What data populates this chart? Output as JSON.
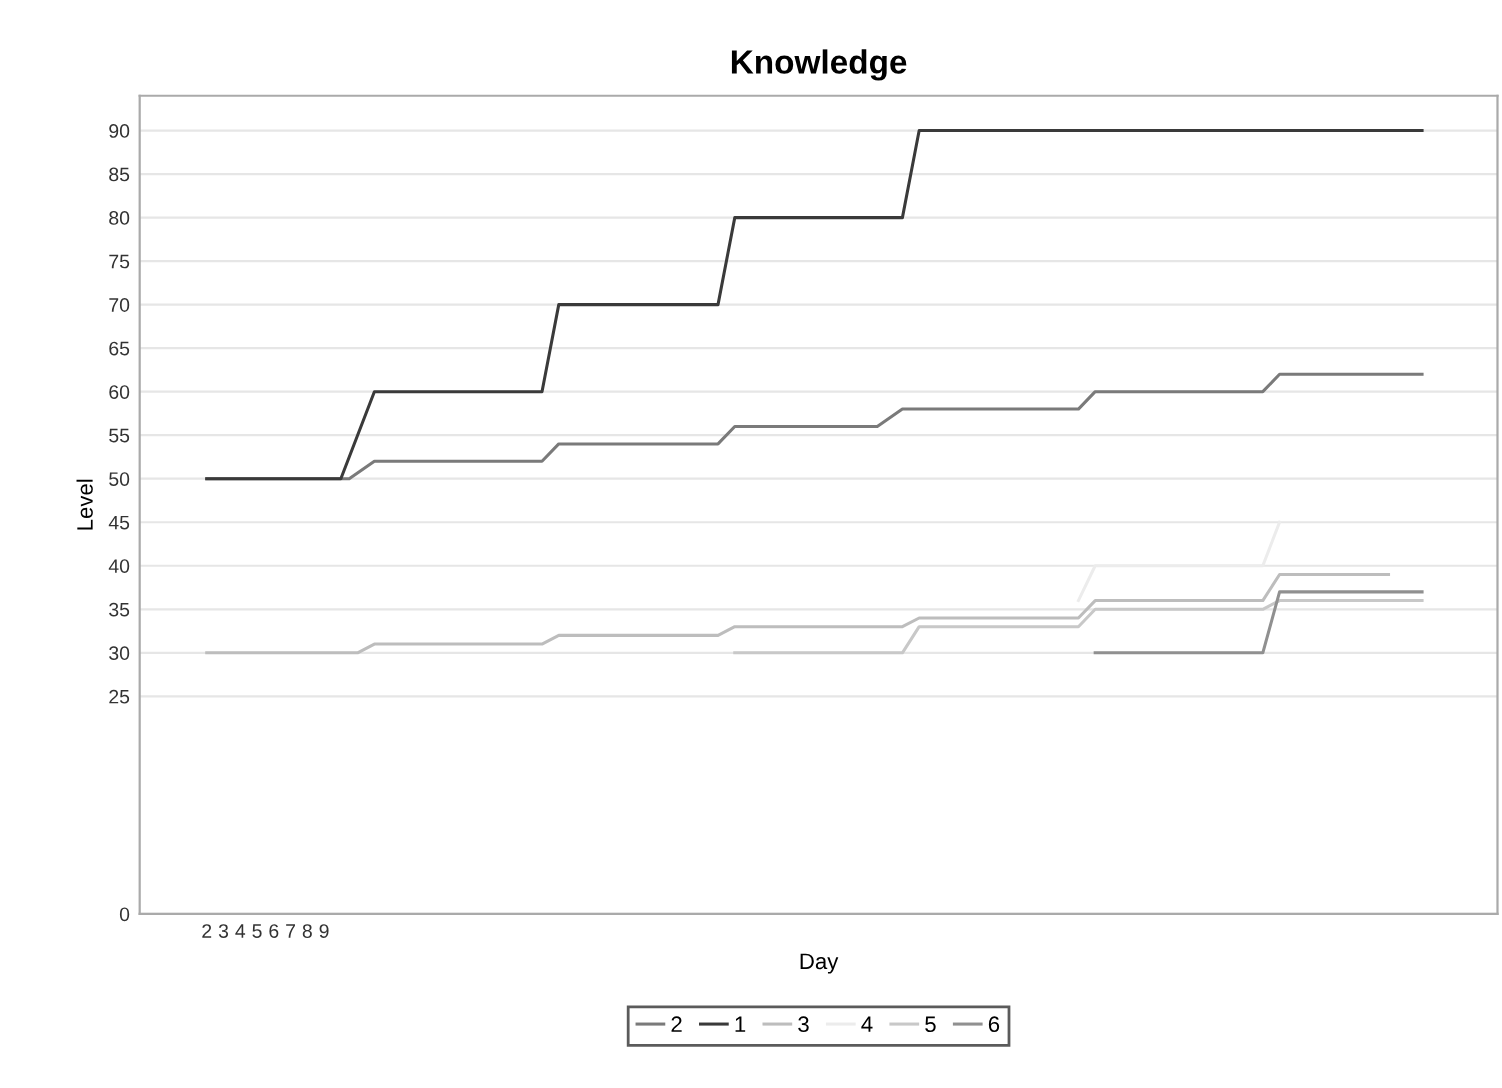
{
  "chart_data": {
    "type": "line",
    "title": "Knowledge",
    "xlabel": "Day",
    "ylabel": "Level",
    "xlim": [
      -2,
      79
    ],
    "xticks": [
      2,
      3,
      4,
      5,
      6,
      7,
      8,
      9
    ],
    "ylim": [
      0,
      94
    ],
    "yticks": [
      0,
      25,
      30,
      35,
      40,
      45,
      50,
      55,
      60,
      65,
      70,
      75,
      80,
      85,
      90
    ],
    "grid": "y",
    "legend": "bottom",
    "marker": "none",
    "line_style": "solid",
    "series": [
      {
        "name": "2",
        "color": "#7a7a7a",
        "x": [
          2,
          10.5,
          12,
          22,
          23,
          32.5,
          33.5,
          42,
          43.5,
          54,
          55,
          65,
          66,
          74.5
        ],
        "values": [
          50,
          50,
          52,
          52,
          54,
          54,
          56,
          56,
          58,
          58,
          60,
          60,
          62,
          62
        ]
      },
      {
        "name": "1",
        "color": "#3a3a3a",
        "x": [
          2,
          10,
          12,
          22,
          23,
          32.5,
          33.5,
          43.5,
          44.5,
          74.5
        ],
        "values": [
          50,
          50,
          60,
          60,
          70,
          70,
          80,
          80,
          90,
          90
        ]
      },
      {
        "name": "3",
        "color": "#bdbdbd",
        "x": [
          2,
          11,
          12,
          22,
          23,
          32.5,
          33.5,
          43.5,
          44.5,
          54,
          55,
          65,
          66,
          72.5
        ],
        "values": [
          30,
          30,
          31,
          31,
          32,
          32,
          33,
          33,
          34,
          34,
          36,
          36,
          39,
          39
        ]
      },
      {
        "name": "4",
        "color": "#ececec",
        "x": [
          54,
          55,
          65,
          66
        ],
        "values": [
          36,
          40,
          40,
          45
        ]
      },
      {
        "name": "5",
        "color": "#c8c8c8",
        "x": [
          33.5,
          43.5,
          44.5,
          54,
          55,
          65,
          66,
          74.5
        ],
        "values": [
          30,
          30,
          33,
          33,
          35,
          35,
          36,
          36
        ]
      },
      {
        "name": "6",
        "color": "#909090",
        "x": [
          55,
          65,
          66,
          74.5
        ],
        "values": [
          30,
          30,
          37,
          37
        ]
      }
    ]
  }
}
